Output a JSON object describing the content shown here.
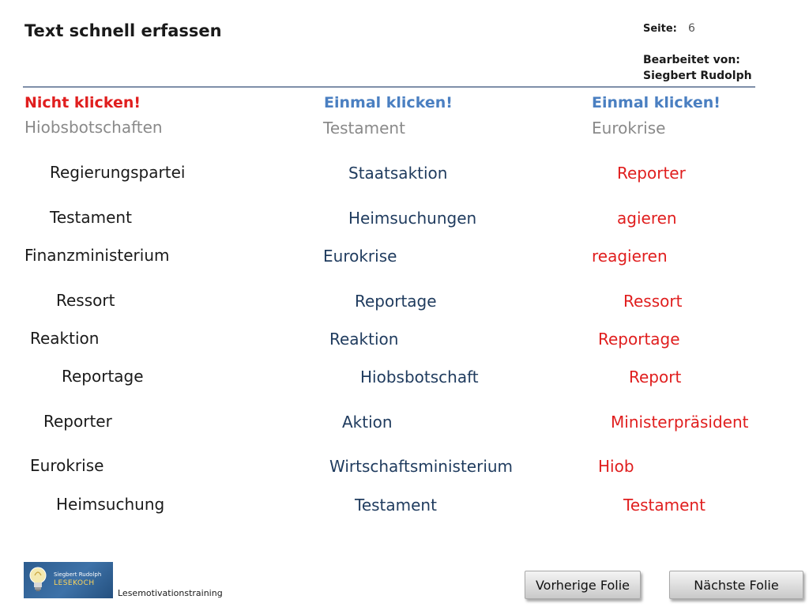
{
  "header": {
    "title": "Text schnell erfassen",
    "page_label": "Seite:",
    "page_number": "6",
    "edited_by_label": "Bearbeitet von:",
    "edited_by_name": "Siegbert Rudolph"
  },
  "columns": [
    {
      "heading": "Nicht klicken!",
      "target": "Hiobsbotschaften",
      "words": [
        "Regierungspartei",
        "Testament",
        "Finanzministerium",
        "Ressort",
        "Reaktion",
        "Reportage",
        "Reporter",
        "Eurokrise",
        "Heimsuchung"
      ]
    },
    {
      "heading": "Einmal klicken!",
      "target": "Testament",
      "words": [
        "Staatsaktion",
        "Heimsuchungen",
        "Eurokrise",
        "Reportage",
        "Reaktion",
        "Hiobsbotschaft",
        "Aktion",
        "Wirtschaftsministerium",
        "Testament"
      ]
    },
    {
      "heading": "Einmal klicken!",
      "target": "Eurokrise",
      "words": [
        "Reporter",
        "agieren",
        "reagieren",
        "Ressort",
        "Reportage",
        "Report",
        "Ministerpräsident",
        "Hiob",
        "Testament"
      ]
    }
  ],
  "footer": {
    "logo_line1": "Siegbert Rudolph",
    "logo_line2": "LESEKOCH",
    "caption": "Lesemotivationstraining",
    "prev_button": "Vorherige Folie",
    "next_button": "Nächste Folie"
  },
  "colors": {
    "heading_red": "#e01e1e",
    "heading_blue": "#4a7fc1",
    "target_gray": "#8a8a8a",
    "word_black": "#1a1a1a",
    "word_blue": "#1f3b5e",
    "word_red": "#e01e1e",
    "rule": "#7f8fa9"
  }
}
